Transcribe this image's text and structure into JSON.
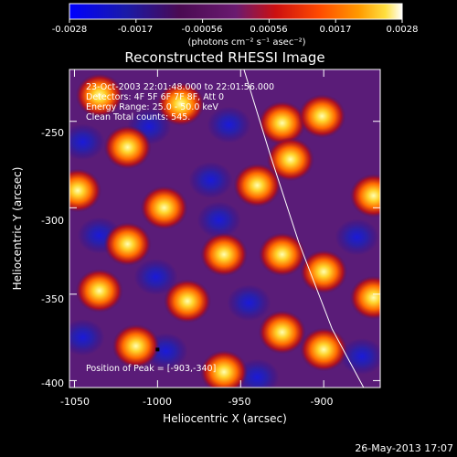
{
  "colorbar": {
    "ticks": [
      "-0.0028",
      "-0.0017",
      "-0.00056",
      "0.00056",
      "0.0017",
      "0.0028"
    ],
    "unit_label": "(photons cm⁻² s⁻¹ asec⁻²)"
  },
  "title": "Reconstructed RHESSI Image",
  "info": {
    "line1": "23-Oct-2003 22:01:48.000 to 22:01:56.000",
    "line2": "Detectors: 4F 5F 6F 7F 8F, Att 0",
    "line3": "Energy Range: 25.0 - 50.0 keV",
    "line4": "Clean    Total counts: 545."
  },
  "peak_label": "Position of Peak = [-903,-340]",
  "x_axis": {
    "label": "Heliocentric X (arcsec)",
    "ticks": [
      "-1050",
      "-1000",
      "-950",
      "-900"
    ],
    "tick_values": [
      -1050,
      -1000,
      -950,
      -900
    ],
    "range": [
      -1053,
      -866
    ]
  },
  "y_axis": {
    "label": "Heliocentric Y (arcsec)",
    "ticks": [
      "-250",
      "-300",
      "-350",
      "-400"
    ],
    "tick_values": [
      -250,
      -300,
      -350,
      -400
    ],
    "range": [
      -404,
      -220
    ]
  },
  "limb_curve": [
    [
      -948,
      -220
    ],
    [
      -932,
      -270
    ],
    [
      -915,
      -320
    ],
    [
      -895,
      -370
    ],
    [
      -876,
      -404
    ]
  ],
  "blobs_hot": [
    [
      -1035,
      -235
    ],
    [
      -986,
      -240
    ],
    [
      -925,
      -251
    ],
    [
      -901,
      -247
    ],
    [
      -1018,
      -265
    ],
    [
      -920,
      -272
    ],
    [
      -1048,
      -290
    ],
    [
      -940,
      -287
    ],
    [
      -996,
      -300
    ],
    [
      -870,
      -293
    ],
    [
      -1018,
      -321
    ],
    [
      -960,
      -327
    ],
    [
      -925,
      -327
    ],
    [
      -900,
      -337
    ],
    [
      -1035,
      -348
    ],
    [
      -982,
      -354
    ],
    [
      -870,
      -352
    ],
    [
      -925,
      -372
    ],
    [
      -1013,
      -380
    ],
    [
      -900,
      -382
    ],
    [
      -960,
      -395
    ]
  ],
  "blobs_cold": [
    [
      -1005,
      -253
    ],
    [
      -957,
      -252
    ],
    [
      -1045,
      -262
    ],
    [
      -968,
      -284
    ],
    [
      -1035,
      -316
    ],
    [
      -963,
      -307
    ],
    [
      -1001,
      -340
    ],
    [
      -880,
      -317
    ],
    [
      -945,
      -355
    ],
    [
      -1045,
      -375
    ],
    [
      -995,
      -383
    ],
    [
      -940,
      -398
    ],
    [
      -877,
      -386
    ]
  ],
  "date_stamp": "26-May-2013 17:07"
}
